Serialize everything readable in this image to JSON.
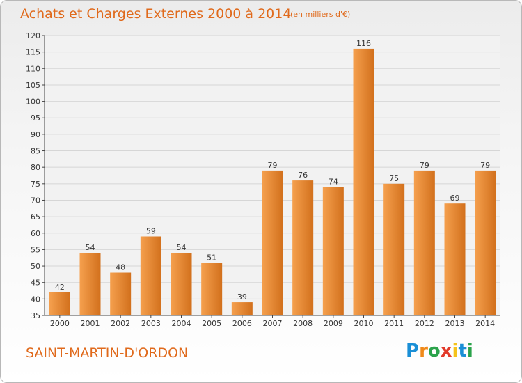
{
  "header": {
    "title": "Achats et Charges Externes 2000 à 2014",
    "subtitle": "(en milliers d'€)"
  },
  "footer": {
    "place": "SAINT-MARTIN-D'ORDON",
    "logo_letters": [
      "P",
      "r",
      "o",
      "x",
      "i",
      "t",
      "i"
    ]
  },
  "colors": {
    "accent": "#e06a1c",
    "bar_light": "#f5a04e",
    "bar_dark": "#d2701c",
    "logo": [
      "#1a8fd6",
      "#f08a1a",
      "#2ba34b",
      "#e23a2a",
      "#f5c31a",
      "#1a8fd6",
      "#2ba34b"
    ]
  },
  "chart_data": {
    "type": "bar",
    "title": "Achats et Charges Externes 2000 à 2014",
    "subtitle": "(en milliers d'€)",
    "categories": [
      "2000",
      "2001",
      "2002",
      "2003",
      "2004",
      "2005",
      "2006",
      "2007",
      "2008",
      "2009",
      "2010",
      "2011",
      "2012",
      "2013",
      "2014"
    ],
    "values": [
      42,
      54,
      48,
      59,
      54,
      51,
      39,
      79,
      76,
      74,
      116,
      75,
      79,
      69,
      79
    ],
    "data_labels": [
      "42",
      "54",
      "48",
      "59",
      "54",
      "51",
      "39",
      "79",
      "76",
      "74",
      "116",
      "75",
      "79",
      "69",
      "79"
    ],
    "ylim": [
      35,
      120
    ],
    "yticks": [
      35,
      40,
      45,
      50,
      55,
      60,
      65,
      70,
      75,
      80,
      85,
      90,
      95,
      100,
      105,
      110,
      115,
      120
    ],
    "xlabel": "",
    "ylabel": "",
    "grid": true,
    "legend": "none"
  }
}
